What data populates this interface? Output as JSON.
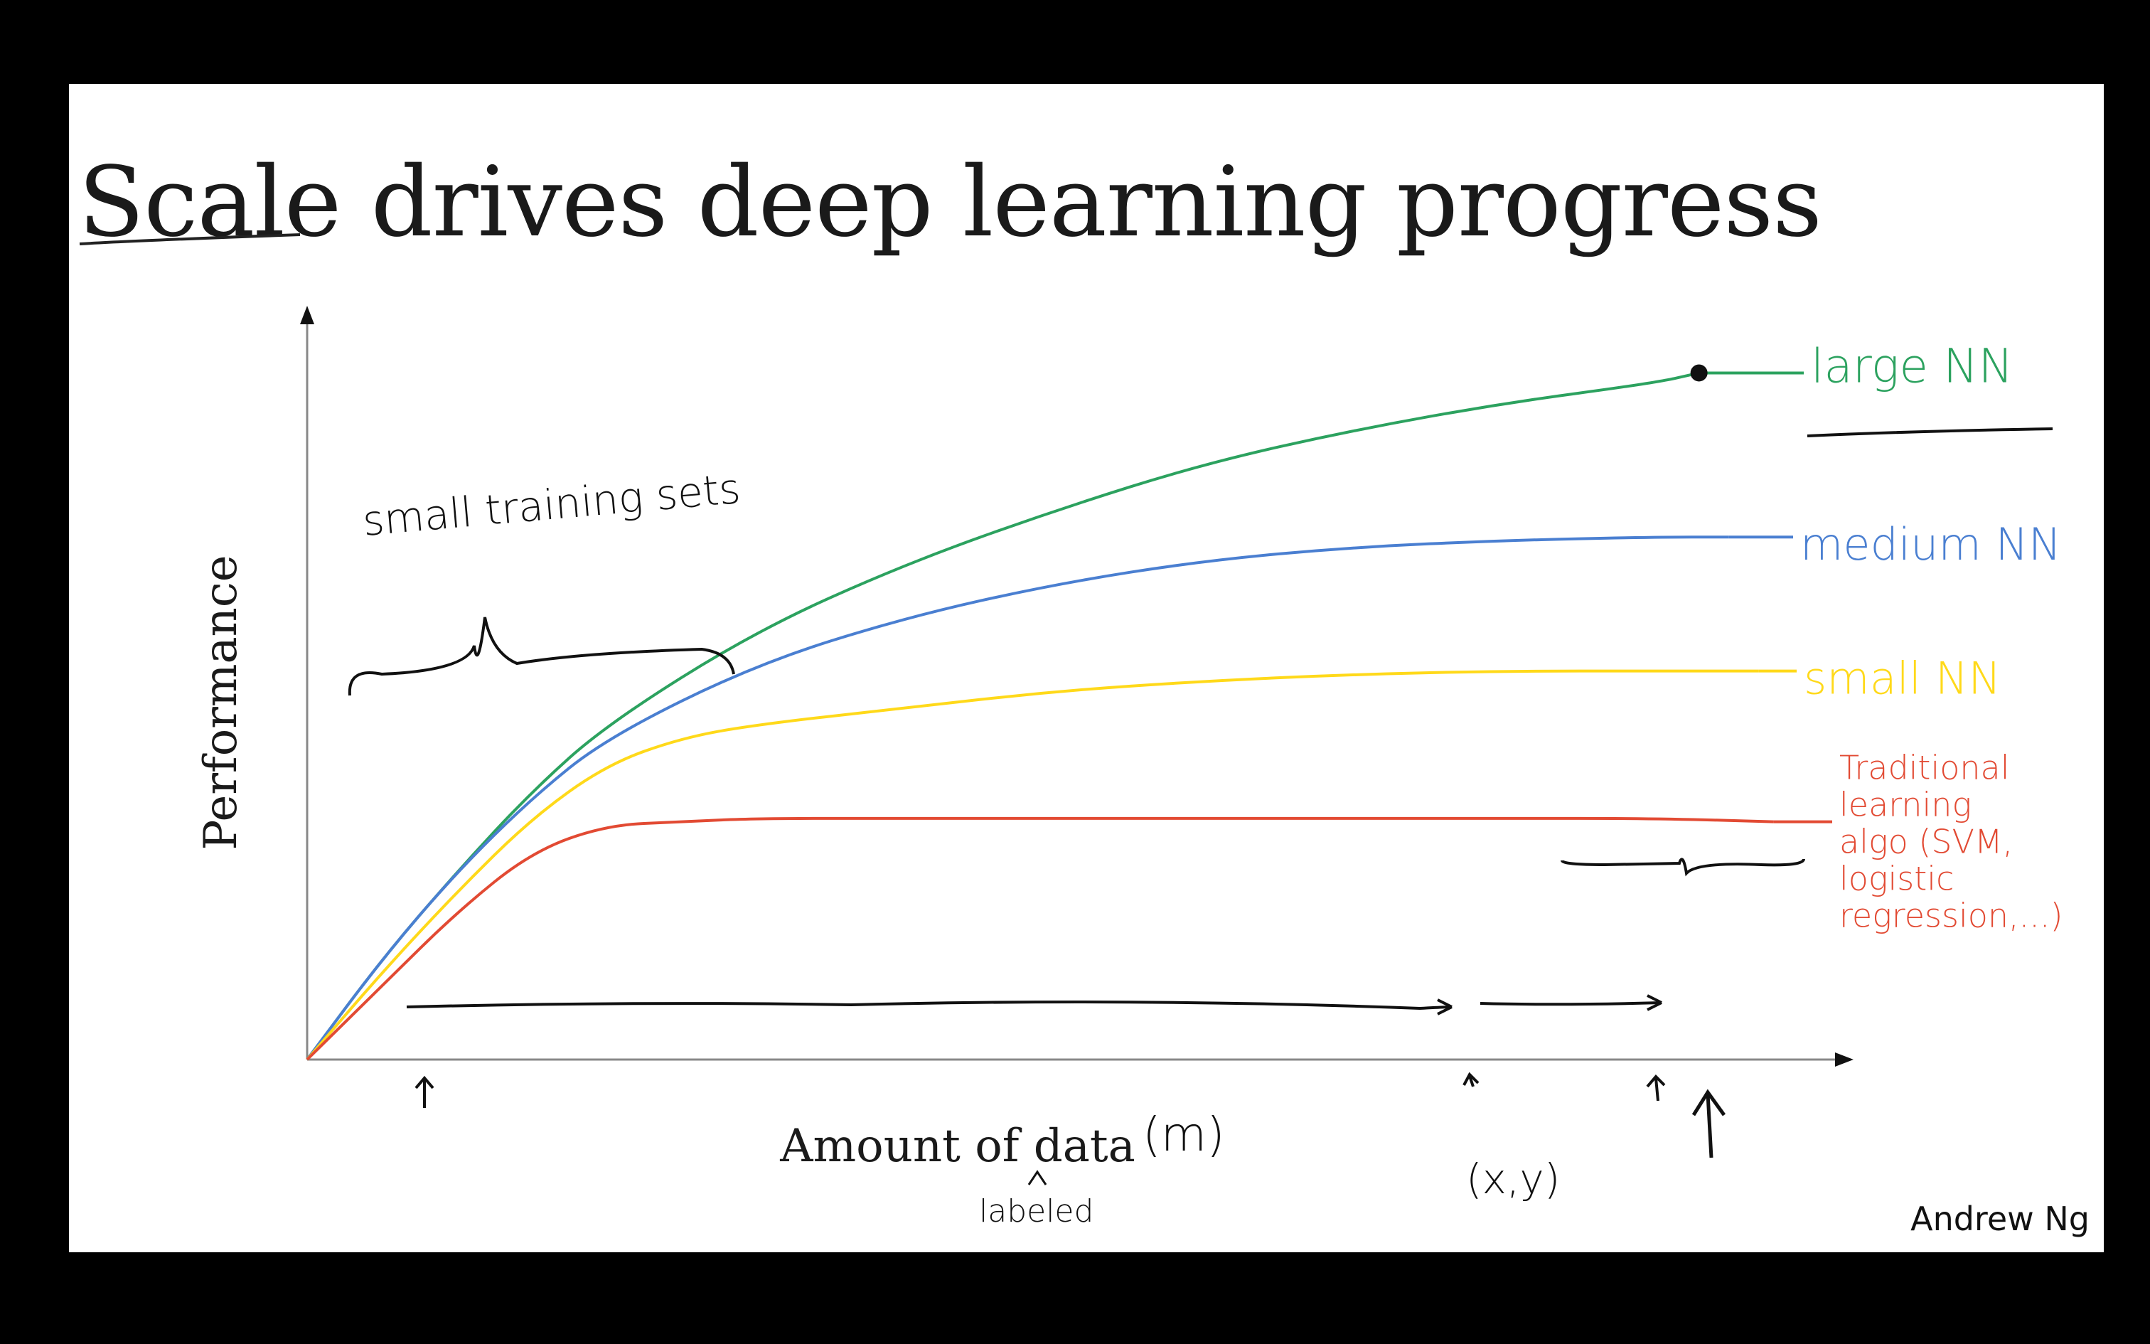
{
  "slide": {
    "title": "Scale drives deep learning progress",
    "author": "Andrew Ng"
  },
  "chart_data": {
    "type": "line",
    "xlabel": "Amount of data",
    "ylabel": "Performance",
    "xlim": [
      0,
      10
    ],
    "ylim": [
      0,
      10
    ],
    "grid": false,
    "legend": "inline-right",
    "annotations": {
      "small_sets": "small training sets",
      "m": "(m)",
      "xy": "(x,y)",
      "labeled": "labeled"
    },
    "series": [
      {
        "name": "large NN",
        "color": "#2ca25f",
        "x": [
          0,
          0.5,
          1,
          1.5,
          2,
          3,
          4,
          5,
          6,
          7,
          8,
          9,
          9.3
        ],
        "y": [
          0,
          1.5,
          2.8,
          4.0,
          5.0,
          6.4,
          7.4,
          8.2,
          8.9,
          9.4,
          9.8,
          10.1,
          10.25
        ]
      },
      {
        "name": "medium NN",
        "color": "#4a7fd1",
        "x": [
          0,
          0.5,
          1,
          1.5,
          2,
          3,
          4,
          5,
          6,
          7,
          8,
          9,
          9.5
        ],
        "y": [
          0,
          1.5,
          2.8,
          3.9,
          4.8,
          5.9,
          6.6,
          7.1,
          7.45,
          7.65,
          7.75,
          7.8,
          7.8
        ]
      },
      {
        "name": "small NN",
        "color": "#ffd91a",
        "x": [
          0,
          0.5,
          1,
          1.5,
          2,
          2.5,
          3,
          4,
          5,
          6,
          7,
          8,
          9,
          9.7
        ],
        "y": [
          0,
          1.3,
          2.5,
          3.6,
          4.4,
          4.8,
          5.0,
          5.25,
          5.5,
          5.65,
          5.75,
          5.8,
          5.8,
          5.8
        ]
      },
      {
        "name": "Traditional learning algo (SVM, logistic regression,...)",
        "color": "#e24a33",
        "x": [
          0,
          0.5,
          1,
          1.5,
          2,
          2.5,
          3,
          4,
          5,
          6,
          7,
          8,
          9,
          9.8
        ],
        "y": [
          0,
          1.1,
          2.2,
          3.1,
          3.5,
          3.55,
          3.6,
          3.6,
          3.6,
          3.6,
          3.6,
          3.6,
          3.6,
          3.55
        ]
      }
    ]
  }
}
